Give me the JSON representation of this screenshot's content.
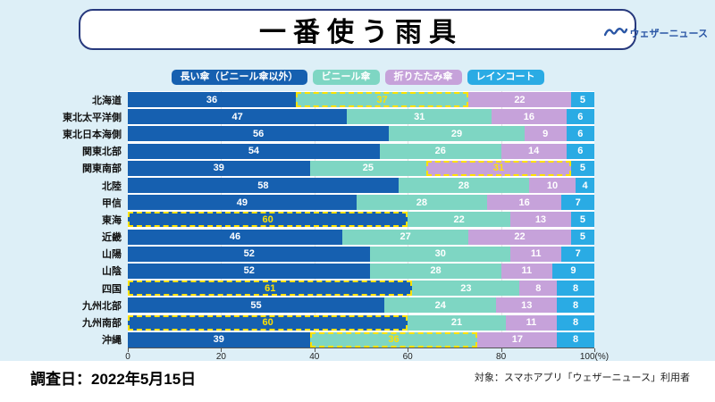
{
  "header": {
    "title": "一番使う雨具",
    "logo_text": "ウェザーニュース"
  },
  "chart_data": {
    "type": "bar",
    "orientation": "horizontal",
    "stacked": true,
    "title": "一番使う雨具",
    "x_ticks": [
      0,
      20,
      40,
      60,
      80,
      100
    ],
    "x_unit": "(%)",
    "xlim": [
      0,
      100
    ],
    "legend_position": "top",
    "series_names": [
      "長い傘（ビニール傘以外）",
      "ビニール傘",
      "折りたたみ傘",
      "レインコート"
    ],
    "colors": [
      "#1660b0",
      "#7ed6c3",
      "#c6a2da",
      "#2aabe4"
    ],
    "highlight_color": "#ffe100",
    "rows": [
      {
        "label": "北海道",
        "values": [
          36,
          37,
          22,
          5
        ],
        "highlight": 1
      },
      {
        "label": "東北太平洋側",
        "values": [
          47,
          31,
          16,
          6
        ],
        "highlight": null
      },
      {
        "label": "東北日本海側",
        "values": [
          56,
          29,
          9,
          6
        ],
        "highlight": null
      },
      {
        "label": "関東北部",
        "values": [
          54,
          26,
          14,
          6
        ],
        "highlight": null
      },
      {
        "label": "関東南部",
        "values": [
          39,
          25,
          31,
          5
        ],
        "highlight": 2
      },
      {
        "label": "北陸",
        "values": [
          58,
          28,
          10,
          4
        ],
        "highlight": null
      },
      {
        "label": "甲信",
        "values": [
          49,
          28,
          16,
          7
        ],
        "highlight": null
      },
      {
        "label": "東海",
        "values": [
          60,
          22,
          13,
          5
        ],
        "highlight": 0
      },
      {
        "label": "近畿",
        "values": [
          46,
          27,
          22,
          5
        ],
        "highlight": null
      },
      {
        "label": "山陽",
        "values": [
          52,
          30,
          11,
          7
        ],
        "highlight": null
      },
      {
        "label": "山陰",
        "values": [
          52,
          28,
          11,
          9
        ],
        "highlight": null
      },
      {
        "label": "四国",
        "values": [
          61,
          23,
          8,
          8
        ],
        "highlight": 0
      },
      {
        "label": "九州北部",
        "values": [
          55,
          24,
          13,
          8
        ],
        "highlight": null
      },
      {
        "label": "九州南部",
        "values": [
          60,
          21,
          11,
          8
        ],
        "highlight": 0
      },
      {
        "label": "沖縄",
        "values": [
          39,
          36,
          17,
          8
        ],
        "highlight": 1
      }
    ]
  },
  "footer": {
    "left": "調査日：2022年5月15日",
    "right": "対象：スマホアプリ「ウェザーニュース」利用者"
  }
}
